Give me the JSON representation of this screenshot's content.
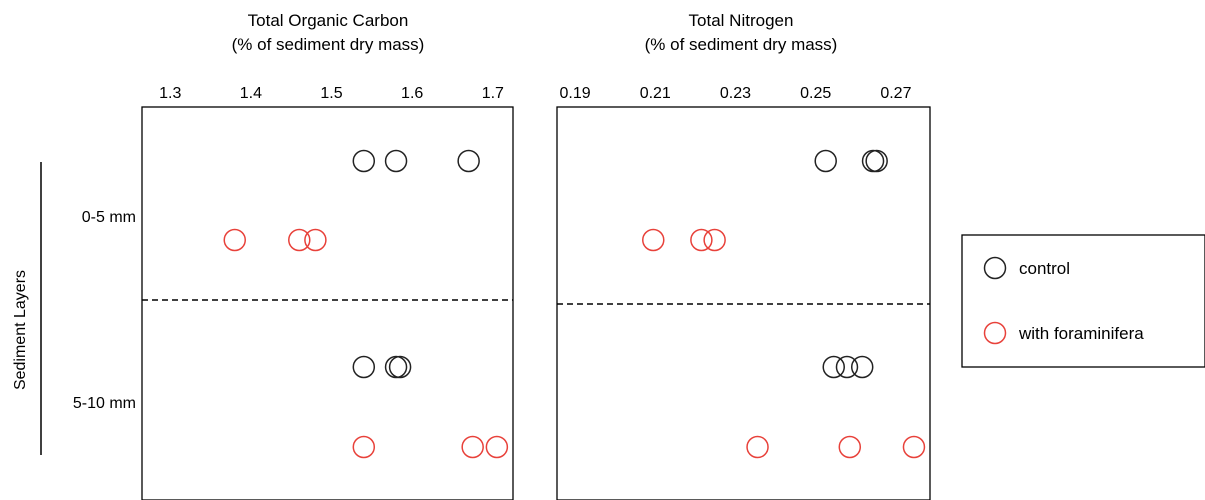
{
  "y_axis_label": "Sediment Layers",
  "categories": [
    "0-5 mm",
    "5-10 mm"
  ],
  "colors": {
    "control": "#222222",
    "with_foraminifera": "#e8413a"
  },
  "legend": {
    "placement": "right",
    "items": [
      {
        "label": "control",
        "color": "#222222"
      },
      {
        "label": "with foraminifera",
        "color": "#e8413a"
      }
    ]
  },
  "chart_data": [
    {
      "type": "scatter",
      "title_line1": "Total Organic Carbon",
      "title_line2": "(% of sediment dry mass)",
      "xlim": [
        1.265,
        1.725
      ],
      "xticks": [
        "1.3",
        "1.4",
        "1.5",
        "1.6",
        "1.7"
      ],
      "x_axis_position": "top",
      "grid": false,
      "series": [
        {
          "name": "control",
          "color": "#222222",
          "points": [
            {
              "layer": "0-5 mm",
              "x": 1.54
            },
            {
              "layer": "0-5 mm",
              "x": 1.58
            },
            {
              "layer": "0-5 mm",
              "x": 1.67
            },
            {
              "layer": "5-10 mm",
              "x": 1.54
            },
            {
              "layer": "5-10 mm",
              "x": 1.58
            },
            {
              "layer": "5-10 mm",
              "x": 1.585
            }
          ]
        },
        {
          "name": "with foraminifera",
          "color": "#e8413a",
          "points": [
            {
              "layer": "0-5 mm",
              "x": 1.38
            },
            {
              "layer": "0-5 mm",
              "x": 1.46
            },
            {
              "layer": "0-5 mm",
              "x": 1.48
            },
            {
              "layer": "5-10 mm",
              "x": 1.54
            },
            {
              "layer": "5-10 mm",
              "x": 1.675
            },
            {
              "layer": "5-10 mm",
              "x": 1.705
            }
          ]
        }
      ]
    },
    {
      "type": "scatter",
      "title_line1": "Total Nitrogen",
      "title_line2": "(% of sediment dry mass)",
      "xlim": [
        0.1855,
        0.2785
      ],
      "xticks": [
        "0.19",
        "0.21",
        "0.23",
        "0.25",
        "0.27"
      ],
      "x_axis_position": "top",
      "grid": false,
      "series": [
        {
          "name": "control",
          "color": "#222222",
          "points": [
            {
              "layer": "0-5 mm",
              "x": 0.2525
            },
            {
              "layer": "0-5 mm",
              "x": 0.2643
            },
            {
              "layer": "0-5 mm",
              "x": 0.2652
            },
            {
              "layer": "5-10 mm",
              "x": 0.2545
            },
            {
              "layer": "5-10 mm",
              "x": 0.2578
            },
            {
              "layer": "5-10 mm",
              "x": 0.2616
            }
          ]
        },
        {
          "name": "with foraminifera",
          "color": "#e8413a",
          "points": [
            {
              "layer": "0-5 mm",
              "x": 0.2095
            },
            {
              "layer": "0-5 mm",
              "x": 0.2215
            },
            {
              "layer": "0-5 mm",
              "x": 0.2248
            },
            {
              "layer": "5-10 mm",
              "x": 0.2355
            },
            {
              "layer": "5-10 mm",
              "x": 0.2585
            },
            {
              "layer": "5-10 mm",
              "x": 0.2745
            }
          ]
        }
      ]
    }
  ]
}
